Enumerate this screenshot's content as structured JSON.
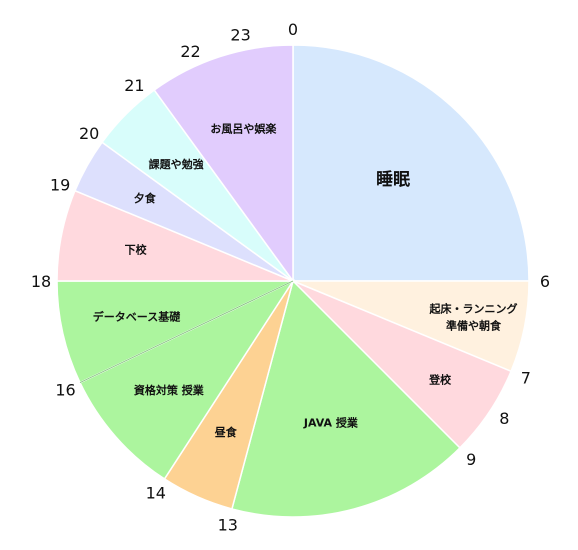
{
  "chart_data": {
    "type": "pie",
    "title": "",
    "unit": "hour",
    "total_hours": 24,
    "start_hour_at_top": 0,
    "direction": "clockwise",
    "slices": [
      {
        "label": "睡眠",
        "start": 0,
        "end": 6,
        "color": "#d6e8fd"
      },
      {
        "label": "起床・ランニング\n準備や朝食",
        "start": 6,
        "end": 7.5,
        "color": "#fff1df"
      },
      {
        "label": "登校",
        "start": 7.5,
        "end": 9,
        "color": "#ffd9de"
      },
      {
        "label": "JAVA 授業",
        "start": 9,
        "end": 13,
        "color": "#acf59e"
      },
      {
        "label": "昼食",
        "start": 13,
        "end": 14.2,
        "color": "#fdd293"
      },
      {
        "label": "資格対策 授業",
        "start": 14.2,
        "end": 16.3,
        "color": "#acf59e"
      },
      {
        "label": "データベース基礎",
        "start": 16.3,
        "end": 18,
        "color": "#acf59e"
      },
      {
        "label": "下校",
        "start": 18,
        "end": 19.5,
        "color": "#ffd9de"
      },
      {
        "label": "夕食",
        "start": 19.5,
        "end": 20.4,
        "color": "#dde0fd"
      },
      {
        "label": "課題や勉強",
        "start": 20.4,
        "end": 21.6,
        "color": "#d8fdfb"
      },
      {
        "label": "お風呂や娯楽",
        "start": 21.6,
        "end": 24,
        "color": "#e1ccfd"
      }
    ],
    "hour_labels": [
      {
        "text": "0",
        "hour": 0
      },
      {
        "text": "6",
        "hour": 6
      },
      {
        "text": "7",
        "hour": 7.5
      },
      {
        "text": "8",
        "hour": 8.2
      },
      {
        "text": "9",
        "hour": 9
      },
      {
        "text": "13",
        "hour": 13
      },
      {
        "text": "14",
        "hour": 14.2
      },
      {
        "text": "16",
        "hour": 16.3
      },
      {
        "text": "18",
        "hour": 18
      },
      {
        "text": "19",
        "hour": 19.5
      },
      {
        "text": "20",
        "hour": 20.4
      },
      {
        "text": "21",
        "hour": 21.4
      },
      {
        "text": "22",
        "hour": 22.4
      },
      {
        "text": "23",
        "hour": 23.2
      }
    ]
  }
}
